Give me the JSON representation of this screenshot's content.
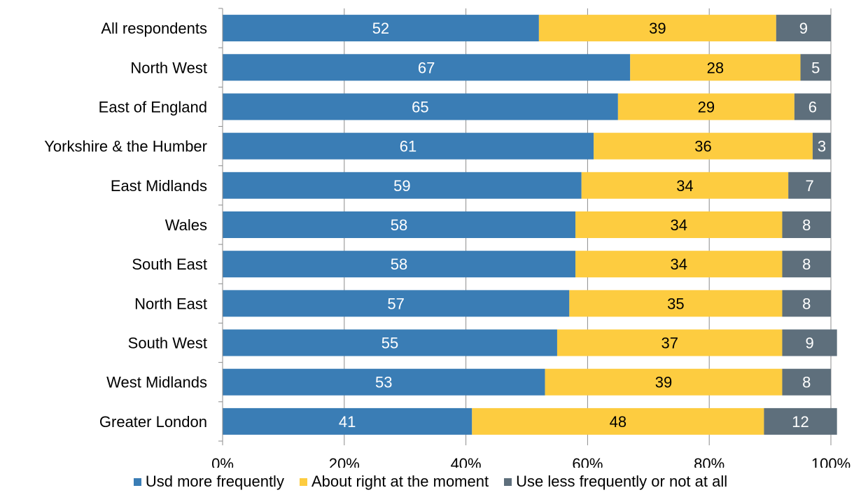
{
  "chart_data": {
    "type": "bar",
    "orientation": "horizontal",
    "stacked": "percent",
    "categories": [
      "All respondents",
      "North West",
      "East of England",
      "Yorkshire & the Humber",
      "East Midlands",
      "Wales",
      "South East",
      "North East",
      "South West",
      "West Midlands",
      "Greater London"
    ],
    "series": [
      {
        "name": "Usd more frequently",
        "color": "#3A7DB5",
        "label_color": "#ffffff",
        "values": [
          52,
          67,
          65,
          61,
          59,
          58,
          58,
          57,
          55,
          53,
          41
        ]
      },
      {
        "name": "About right at the moment",
        "color": "#FDCC40",
        "label_color": "#000000",
        "values": [
          39,
          28,
          29,
          36,
          34,
          34,
          34,
          35,
          37,
          39,
          48
        ]
      },
      {
        "name": "Use less frequently or not at all",
        "color": "#5E6F7C",
        "label_color": "#ffffff",
        "values": [
          9,
          5,
          6,
          3,
          7,
          8,
          8,
          8,
          9,
          8,
          12
        ]
      }
    ],
    "xlim": [
      0,
      100
    ],
    "x_ticks": [
      "0%",
      "20%",
      "40%",
      "60%",
      "80%",
      "100%"
    ],
    "grid": "vertical",
    "legend_position": "bottom"
  }
}
